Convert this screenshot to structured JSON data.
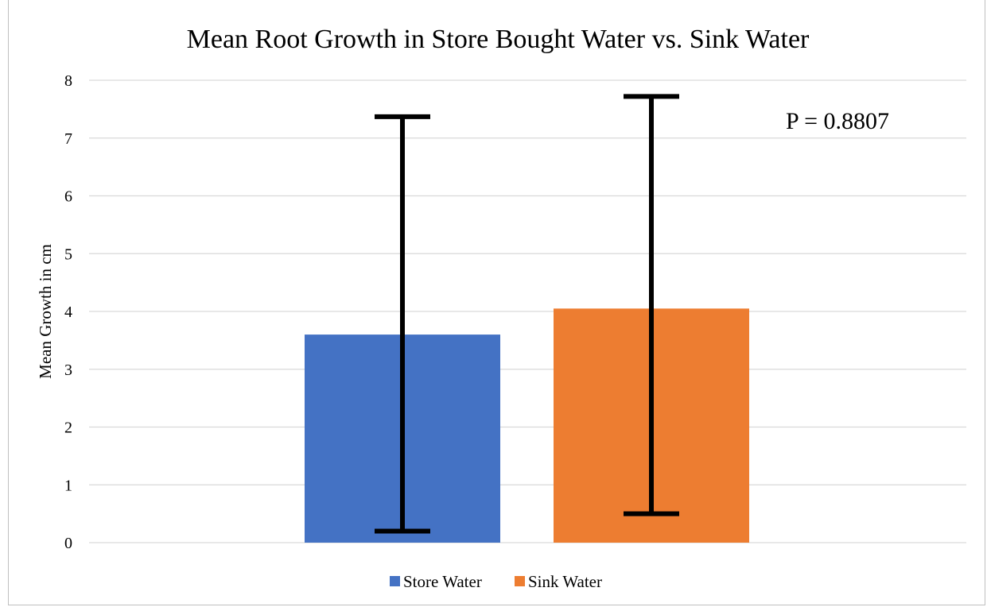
{
  "chart_data": {
    "type": "bar",
    "title": "Mean Root Growth in Store Bought Water vs. Sink Water",
    "xlabel": "",
    "ylabel": "Mean Growth in cm",
    "ylim": [
      0,
      8
    ],
    "yticks": [
      0,
      1,
      2,
      3,
      4,
      5,
      6,
      7,
      8
    ],
    "grid": true,
    "legend_position": "bottom",
    "annotation": "P = 0.8807",
    "series": [
      {
        "name": "Store Water",
        "value": 3.6,
        "error_low": 0.2,
        "error_high": 7.37,
        "color": "#4472C4"
      },
      {
        "name": "Sink Water",
        "value": 4.05,
        "error_low": 0.5,
        "error_high": 7.72,
        "color": "#ED7D31"
      }
    ]
  }
}
